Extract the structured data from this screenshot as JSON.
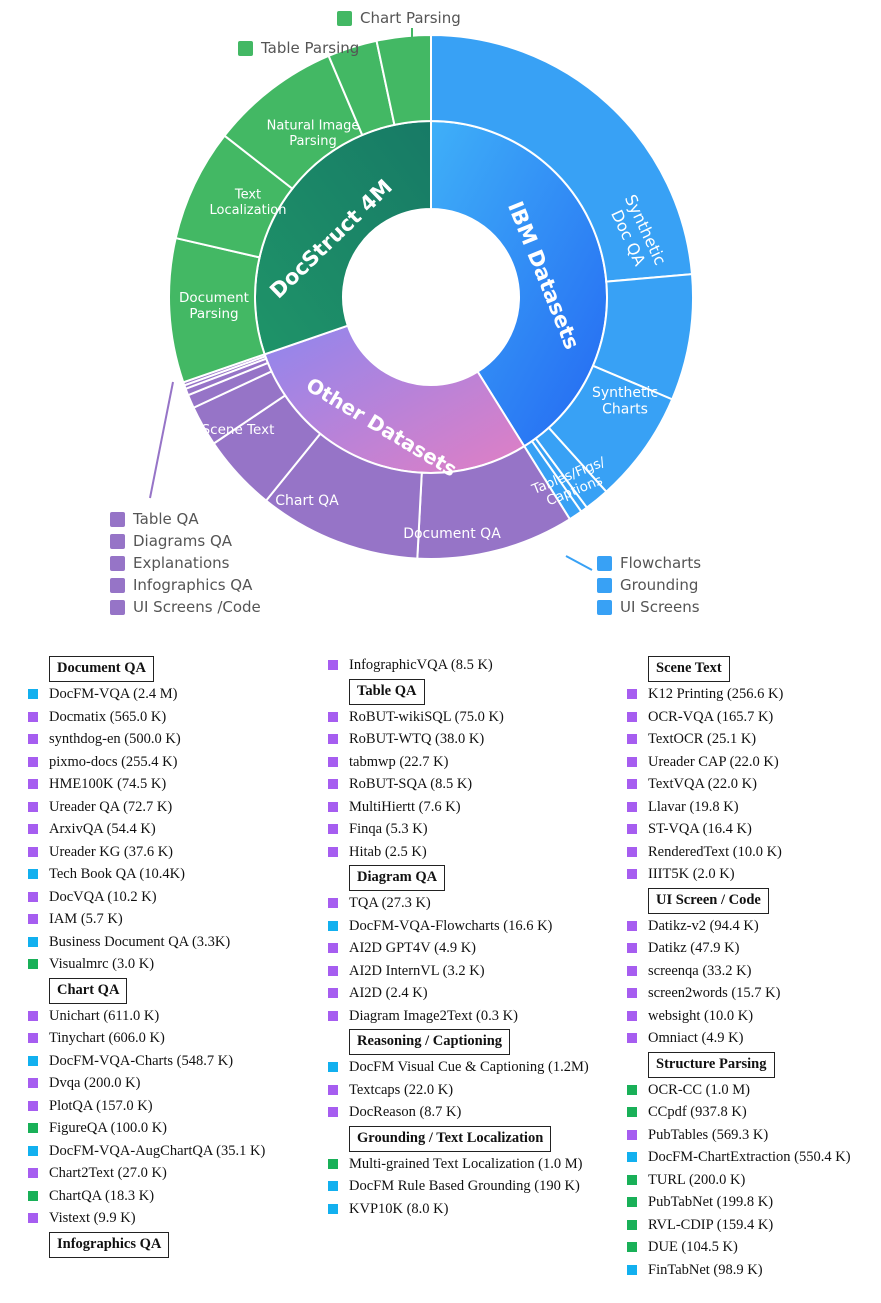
{
  "colors": {
    "green": "#43b864",
    "blue": "#38a1f5",
    "purple": "#9674c7",
    "legend_purple": "#a65df0",
    "legend_blue": "#12b0ef",
    "legend_green": "#19b058"
  },
  "sunburst": {
    "inner": [
      {
        "label": "DocStruct 4M",
        "color": "#1e8a68"
      },
      {
        "label": "IBM Datasets",
        "color": "#2f7ef5"
      },
      {
        "label": "Other Datasets",
        "color": "#c57ad6"
      }
    ],
    "outer": [
      {
        "label": "Chart Parsing",
        "color": "#43b864"
      },
      {
        "label": "Table Parsing",
        "color": "#43b864"
      },
      {
        "label": "Natural Image Parsing",
        "color": "#43b864"
      },
      {
        "label": "Text Localization",
        "color": "#43b864"
      },
      {
        "label": "Document Parsing",
        "color": "#43b864"
      },
      {
        "label": "Synthetic Doc QA",
        "color": "#38a1f5"
      },
      {
        "label": "Synthetic Charts",
        "color": "#38a1f5"
      },
      {
        "label": "Tables/Figs/ Captions",
        "color": "#38a1f5"
      },
      {
        "label": "Flowcharts",
        "color": "#38a1f5"
      },
      {
        "label": "Grounding",
        "color": "#38a1f5"
      },
      {
        "label": "UI Screens",
        "color": "#38a1f5"
      },
      {
        "label": "Document QA",
        "color": "#9674c7"
      },
      {
        "label": "Chart QA",
        "color": "#9674c7"
      },
      {
        "label": "Scene Text",
        "color": "#9674c7"
      },
      {
        "label": "Table QA",
        "color": "#9674c7"
      },
      {
        "label": "Diagrams QA",
        "color": "#9674c7"
      },
      {
        "label": "Explanations",
        "color": "#9674c7"
      },
      {
        "label": "Infographics QA",
        "color": "#9674c7"
      },
      {
        "label": "UI Screens /Code",
        "color": "#9674c7"
      }
    ],
    "legend_top": [
      "Chart Parsing",
      "Table Parsing"
    ],
    "legend_bottom_left": [
      "Table QA",
      "Diagrams QA",
      "Explanations",
      "Infographics QA",
      "UI Screens /Code"
    ],
    "legend_bottom_right": [
      "Flowcharts",
      "Grounding",
      "UI Screens"
    ]
  },
  "columns": [
    [
      {
        "title": "Document QA"
      },
      {
        "text": "DocFM-VQA (2.4 M)",
        "c": "b"
      },
      {
        "text": "Docmatix (565.0 K)",
        "c": "p"
      },
      {
        "text": "synthdog-en (500.0 K)",
        "c": "p"
      },
      {
        "text": "pixmo-docs (255.4 K)",
        "c": "p"
      },
      {
        "text": "HME100K (74.5 K)",
        "c": "p"
      },
      {
        "text": "Ureader QA (72.7 K)",
        "c": "p"
      },
      {
        "text": "ArxivQA (54.4 K)",
        "c": "p"
      },
      {
        "text": "Ureader KG (37.6 K)",
        "c": "p"
      },
      {
        "text": "Tech Book QA (10.4K)",
        "c": "b"
      },
      {
        "text": "DocVQA (10.2 K)",
        "c": "p"
      },
      {
        "text": "IAM (5.7 K)",
        "c": "p"
      },
      {
        "text": "Business Document QA (3.3K)",
        "c": "b"
      },
      {
        "text": "Visualmrc (3.0 K)",
        "c": "g"
      },
      {
        "title": "Chart QA"
      },
      {
        "text": "Unichart (611.0 K)",
        "c": "p"
      },
      {
        "text": "Tinychart (606.0 K)",
        "c": "p"
      },
      {
        "text": "DocFM-VQA-Charts (548.7 K)",
        "c": "b"
      },
      {
        "text": "Dvqa (200.0 K)",
        "c": "p"
      },
      {
        "text": "PlotQA (157.0 K)",
        "c": "p"
      },
      {
        "text": "FigureQA (100.0 K)",
        "c": "g"
      },
      {
        "text": "DocFM-VQA-AugChartQA (35.1 K)",
        "c": "b"
      },
      {
        "text": "Chart2Text (27.0 K)",
        "c": "p"
      },
      {
        "text": "ChartQA (18.3 K)",
        "c": "g"
      },
      {
        "text": "Vistext (9.9 K)",
        "c": "p"
      },
      {
        "title": "Infographics QA"
      }
    ],
    [
      {
        "text": "InfographicVQA (8.5 K)",
        "c": "p"
      },
      {
        "title": "Table QA"
      },
      {
        "text": "RoBUT-wikiSQL (75.0 K)",
        "c": "p"
      },
      {
        "text": "RoBUT-WTQ (38.0 K)",
        "c": "p"
      },
      {
        "text": "tabmwp (22.7 K)",
        "c": "p"
      },
      {
        "text": "RoBUT-SQA (8.5 K)",
        "c": "p"
      },
      {
        "text": "MultiHiertt (7.6 K)",
        "c": "p"
      },
      {
        "text": "Finqa (5.3 K)",
        "c": "p"
      },
      {
        "text": "Hitab (2.5 K)",
        "c": "p"
      },
      {
        "title": "Diagram QA"
      },
      {
        "text": "TQA (27.3 K)",
        "c": "p"
      },
      {
        "text": "DocFM-VQA-Flowcharts (16.6 K)",
        "c": "b"
      },
      {
        "text": "AI2D GPT4V (4.9 K)",
        "c": "p"
      },
      {
        "text": "AI2D InternVL (3.2 K)",
        "c": "p"
      },
      {
        "text": "AI2D (2.4 K)",
        "c": "p"
      },
      {
        "text": "Diagram Image2Text (0.3 K)",
        "c": "p"
      },
      {
        "title": "Reasoning / Captioning"
      },
      {
        "text": "DocFM Visual Cue & Captioning (1.2M)",
        "c": "b"
      },
      {
        "text": "Textcaps (22.0 K)",
        "c": "p"
      },
      {
        "text": "DocReason (8.7 K)",
        "c": "p"
      },
      {
        "title": "Grounding / Text Localization"
      },
      {
        "text": "Multi-grained Text Localization (1.0 M)",
        "c": "g"
      },
      {
        "text": "DocFM Rule Based Grounding (190 K)",
        "c": "b"
      },
      {
        "text": "KVP10K (8.0 K)",
        "c": "b"
      }
    ],
    [
      {
        "title": "Scene Text"
      },
      {
        "text": "K12 Printing (256.6 K)",
        "c": "p"
      },
      {
        "text": "OCR-VQA (165.7 K)",
        "c": "p"
      },
      {
        "text": "TextOCR (25.1 K)",
        "c": "p"
      },
      {
        "text": "Ureader CAP (22.0 K)",
        "c": "p"
      },
      {
        "text": "TextVQA (22.0 K)",
        "c": "p"
      },
      {
        "text": "Llavar (19.8 K)",
        "c": "p"
      },
      {
        "text": "ST-VQA (16.4 K)",
        "c": "p"
      },
      {
        "text": "RenderedText (10.0 K)",
        "c": "p"
      },
      {
        "text": "IIIT5K (2.0 K)",
        "c": "p"
      },
      {
        "title": "UI Screen / Code"
      },
      {
        "text": "Datikz-v2 (94.4 K)",
        "c": "p"
      },
      {
        "text": "Datikz (47.9 K)",
        "c": "p"
      },
      {
        "text": "screenqa (33.2 K)",
        "c": "p"
      },
      {
        "text": "screen2words (15.7 K)",
        "c": "p"
      },
      {
        "text": "websight (10.0 K)",
        "c": "p"
      },
      {
        "text": "Omniact (4.9 K)",
        "c": "p"
      },
      {
        "title": "Structure Parsing"
      },
      {
        "text": "OCR-CC (1.0 M)",
        "c": "g"
      },
      {
        "text": "CCpdf (937.8 K)",
        "c": "g"
      },
      {
        "text": "PubTables (569.3 K)",
        "c": "p"
      },
      {
        "text": "DocFM-ChartExtraction (550.4 K)",
        "c": "b"
      },
      {
        "text": "TURL (200.0 K)",
        "c": "g"
      },
      {
        "text": "PubTabNet (199.8 K)",
        "c": "g"
      },
      {
        "text": "RVL-CDIP (159.4 K)",
        "c": "g"
      },
      {
        "text": "DUE (104.5 K)",
        "c": "g"
      },
      {
        "text": "FinTabNet (98.9 K)",
        "c": "b"
      }
    ]
  ],
  "chart_data": {
    "type": "sunburst",
    "inner": [
      {
        "name": "IBM Datasets",
        "span": [
          0,
          148
        ]
      },
      {
        "name": "Other Datasets",
        "span": [
          148,
          251
        ]
      },
      {
        "name": "DocStruct 4M",
        "span": [
          251,
          360
        ]
      }
    ],
    "outer": [
      {
        "name": "Synthetic Doc QA",
        "span": [
          0,
          85
        ]
      },
      {
        "name": "Synthetic Charts",
        "span": [
          85,
          113
        ]
      },
      {
        "name": "Tables/Figs/ Captions",
        "span": [
          113,
          138
        ]
      },
      {
        "name": "Flowcharts",
        "span": [
          138,
          143.5
        ]
      },
      {
        "name": "Grounding",
        "span": [
          143.5,
          145
        ]
      },
      {
        "name": "UI Screens",
        "span": [
          145,
          148
        ]
      },
      {
        "name": "Document QA",
        "span": [
          148,
          183
        ]
      },
      {
        "name": "Chart QA",
        "span": [
          183,
          219
        ]
      },
      {
        "name": "Scene Text",
        "span": [
          219,
          236
        ]
      },
      {
        "name": "Table QA",
        "span": [
          236,
          245
        ]
      },
      {
        "name": "Diagrams QA",
        "span": [
          245,
          248
        ]
      },
      {
        "name": "Explanations",
        "span": [
          248,
          249.5
        ]
      },
      {
        "name": "Infographics QA",
        "span": [
          249.5,
          250.3
        ]
      },
      {
        "name": "UI Screens /Code",
        "span": [
          250.3,
          251
        ]
      },
      {
        "name": "Document Parsing",
        "span": [
          251,
          283
        ]
      },
      {
        "name": "Text Localization",
        "span": [
          283,
          308
        ]
      },
      {
        "name": "Natural Image Parsing",
        "span": [
          308,
          337
        ]
      },
      {
        "name": "Table Parsing",
        "span": [
          337,
          348
        ]
      },
      {
        "name": "Chart Parsing",
        "span": [
          348,
          360
        ]
      }
    ]
  }
}
